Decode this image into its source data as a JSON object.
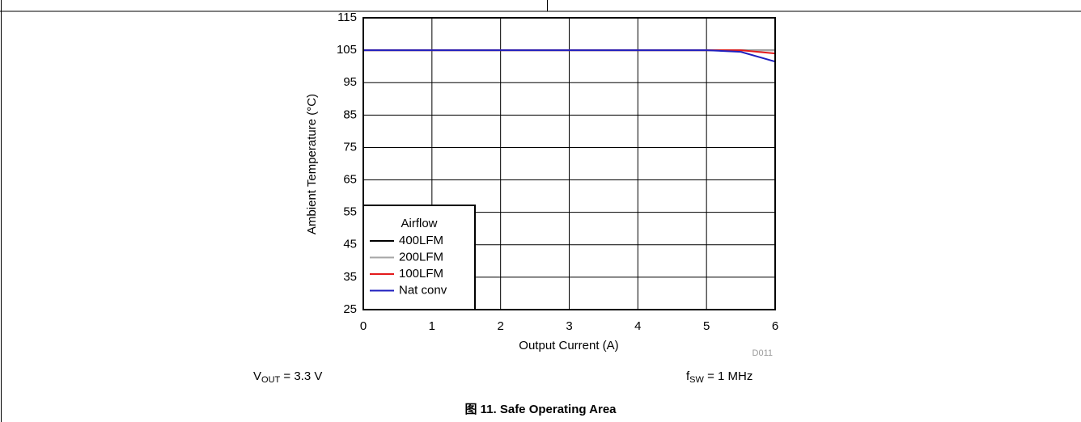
{
  "chart_data": {
    "type": "line",
    "x_label": "Output Current (A)",
    "y_label": "Ambient Temperature (°C)",
    "x": [
      0,
      1,
      2,
      3,
      4,
      5,
      5.5,
      6
    ],
    "series": [
      {
        "name": "400LFM",
        "color": "#000000",
        "values": [
          105,
          105,
          105,
          105,
          105,
          105,
          105,
          105
        ]
      },
      {
        "name": "200LFM",
        "color": "#a6a6a6",
        "values": [
          105,
          105,
          105,
          105,
          105,
          105,
          105,
          105
        ]
      },
      {
        "name": "100LFM",
        "color": "#e31a1c",
        "values": [
          105,
          105,
          105,
          105,
          105,
          105,
          105,
          104
        ]
      },
      {
        "name": "Nat conv",
        "color": "#1f1fbf",
        "values": [
          105,
          105,
          105,
          105,
          105,
          105,
          104.5,
          101.5
        ]
      }
    ],
    "legend_title": "Airflow",
    "legend": "lower left",
    "xlim": [
      0,
      6
    ],
    "xticks": [
      0,
      1,
      2,
      3,
      4,
      5,
      6
    ],
    "ylim": [
      25,
      115
    ],
    "yticks": [
      25,
      35,
      45,
      55,
      65,
      75,
      85,
      95,
      105,
      115
    ],
    "grid": true,
    "annotations": [
      {
        "text": "V",
        "sub": "OUT",
        "after": " = 3.3 V"
      },
      {
        "text": "f",
        "sub": "SW",
        "after": " = 1 MHz"
      }
    ],
    "figure_code": "D011",
    "caption": "图 11. Safe Operating Area"
  }
}
